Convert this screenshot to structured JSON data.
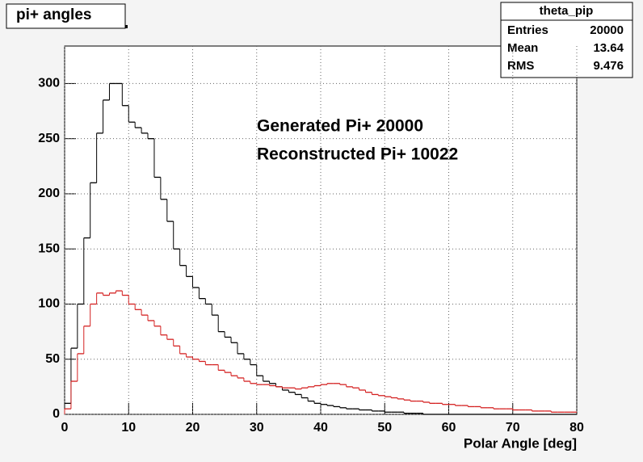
{
  "chart_data": {
    "type": "histogram",
    "title": "pi+ angles",
    "xlabel": "Polar Angle [deg]",
    "bins": [
      0,
      1,
      2,
      3,
      4,
      5,
      6,
      7,
      8,
      9,
      10,
      11,
      12,
      13,
      14,
      15,
      16,
      17,
      18,
      19,
      20,
      21,
      22,
      23,
      24,
      25,
      26,
      27,
      28,
      29,
      30,
      31,
      32,
      33,
      34,
      35,
      36,
      37,
      38,
      39,
      40,
      41,
      42,
      43,
      44,
      45,
      46,
      47,
      48,
      49,
      50,
      51,
      52,
      53,
      54,
      55,
      56,
      57,
      58,
      59,
      60,
      61,
      62,
      63,
      64,
      65,
      66,
      67,
      68,
      69,
      70,
      71,
      72,
      73,
      74,
      75,
      76,
      77,
      78,
      79,
      80
    ],
    "series": [
      {
        "color": "#000000",
        "values": [
          10,
          60,
          100,
          160,
          210,
          255,
          285,
          300,
          300,
          280,
          265,
          260,
          255,
          250,
          215,
          195,
          175,
          150,
          135,
          125,
          115,
          105,
          100,
          90,
          75,
          70,
          65,
          55,
          50,
          45,
          35,
          30,
          28,
          25,
          22,
          20,
          18,
          15,
          12,
          10,
          9,
          8,
          7,
          6,
          5,
          5,
          4,
          4,
          3,
          3,
          2,
          2,
          2,
          1,
          1,
          1,
          0,
          0,
          0,
          0,
          0,
          0,
          0,
          0,
          0,
          0,
          0,
          0,
          0,
          0,
          0,
          0,
          0,
          0,
          0,
          0,
          0,
          0,
          0,
          0
        ]
      },
      {
        "color": "#d42020",
        "values": [
          5,
          30,
          55,
          80,
          100,
          110,
          108,
          110,
          112,
          108,
          100,
          95,
          90,
          85,
          80,
          72,
          68,
          62,
          55,
          52,
          50,
          48,
          45,
          45,
          40,
          38,
          35,
          33,
          30,
          28,
          27,
          27,
          26,
          25,
          24,
          24,
          23,
          24,
          25,
          26,
          27,
          28,
          28,
          27,
          25,
          24,
          22,
          20,
          18,
          17,
          16,
          15,
          14,
          13,
          12,
          12,
          11,
          10,
          10,
          9,
          9,
          8,
          8,
          7,
          7,
          6,
          6,
          5,
          5,
          5,
          4,
          4,
          4,
          3,
          3,
          3,
          2,
          2,
          2,
          2
        ]
      }
    ],
    "xlim": [
      0,
      80
    ],
    "xticks": [
      0,
      10,
      20,
      30,
      40,
      50,
      60,
      70,
      80
    ],
    "ylim": [
      0,
      334
    ],
    "yticks": [
      0,
      50,
      100,
      150,
      200,
      250,
      300
    ],
    "grid": true,
    "annotations": [
      "Generated Pi+ 20000",
      "Reconstructed Pi+ 10022"
    ],
    "stats": {
      "name": "theta_pip",
      "rows": [
        [
          "Entries",
          20000
        ],
        [
          "Mean",
          13.64
        ],
        [
          "RMS",
          9.476
        ]
      ]
    }
  }
}
